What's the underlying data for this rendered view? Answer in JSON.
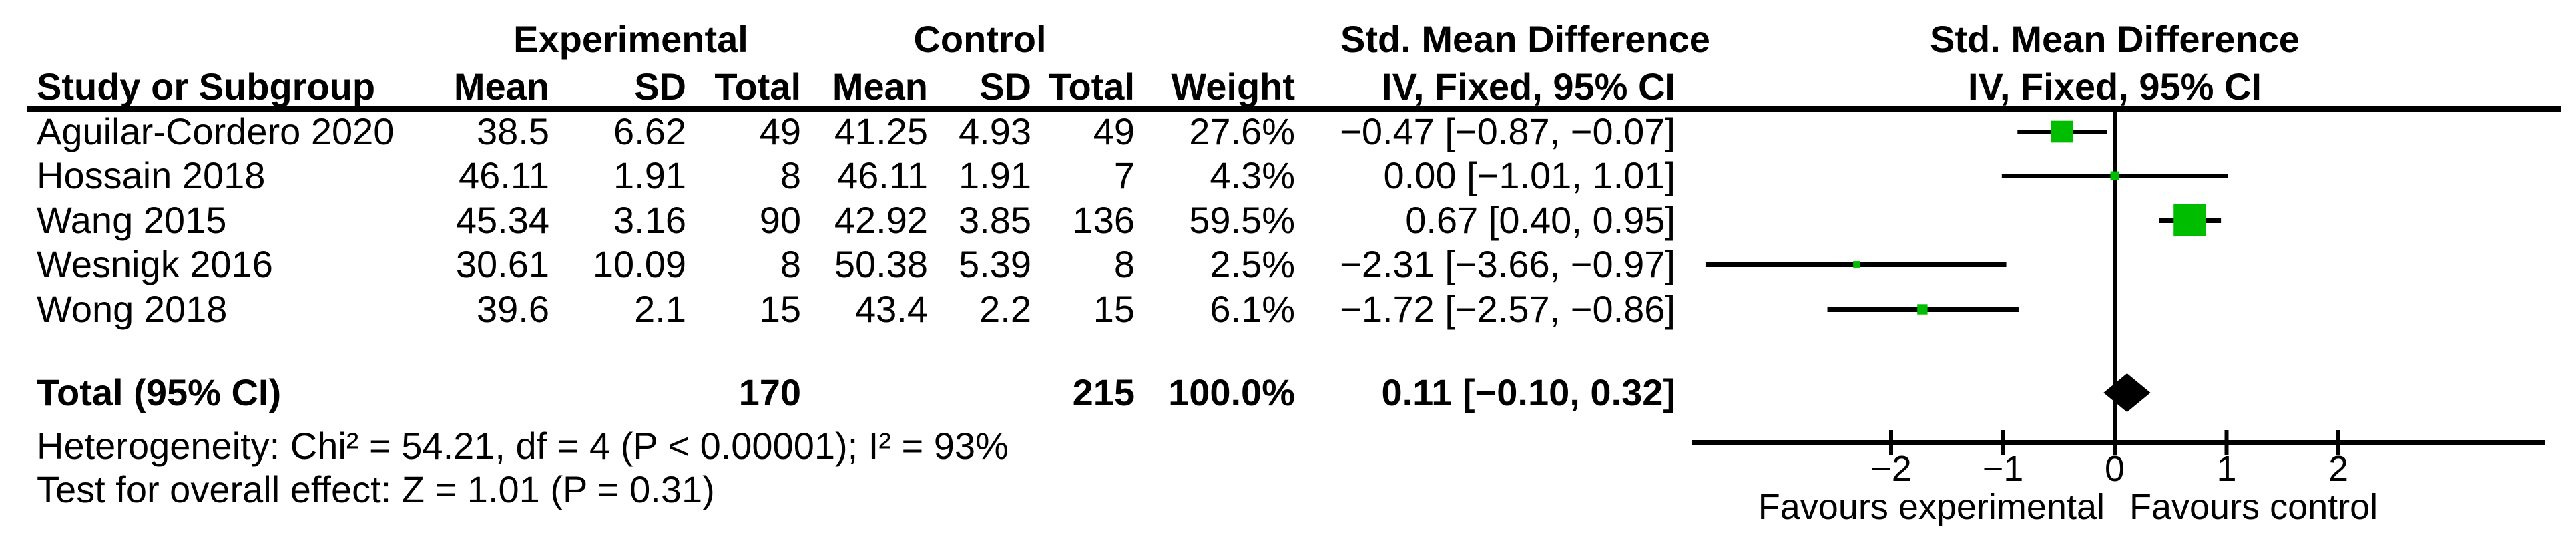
{
  "figure": {
    "kind": "forest-plot",
    "background": "#ffffff"
  },
  "colors": {
    "marker_green": "#00bd00",
    "line_black": "#000000",
    "text_black": "#000000"
  },
  "table": {
    "group_headers": {
      "experimental": "Experimental",
      "control": "Control",
      "smd_left": "Std. Mean Difference",
      "smd_right": "Std. Mean Difference"
    },
    "column_headers": {
      "study": "Study or Subgroup",
      "mean_exp": "Mean",
      "sd_exp": "SD",
      "total_exp": "Total",
      "mean_ctrl": "Mean",
      "sd_ctrl": "SD",
      "total_ctrl": "Total",
      "weight": "Weight",
      "ci": "IV, Fixed, 95% CI",
      "ci_plot": "IV, Fixed, 95% CI"
    },
    "rows": [
      {
        "study": "Aguilar-Cordero 2020",
        "mean_exp": "38.5",
        "sd_exp": "6.62",
        "total_exp": "49",
        "mean_ctrl": "41.25",
        "sd_ctrl": "4.93",
        "total_ctrl": "49",
        "weight": "27.6%",
        "ci_text": "−0.47 [−0.87, −0.07]"
      },
      {
        "study": "Hossain 2018",
        "mean_exp": "46.11",
        "sd_exp": "1.91",
        "total_exp": "8",
        "mean_ctrl": "46.11",
        "sd_ctrl": "1.91",
        "total_ctrl": "7",
        "weight": "4.3%",
        "ci_text": "0.00 [−1.01, 1.01]"
      },
      {
        "study": "Wang 2015",
        "mean_exp": "45.34",
        "sd_exp": "3.16",
        "total_exp": "90",
        "mean_ctrl": "42.92",
        "sd_ctrl": "3.85",
        "total_ctrl": "136",
        "weight": "59.5%",
        "ci_text": "0.67 [0.40, 0.95]"
      },
      {
        "study": "Wesnigk 2016",
        "mean_exp": "30.61",
        "sd_exp": "10.09",
        "total_exp": "8",
        "mean_ctrl": "50.38",
        "sd_ctrl": "5.39",
        "total_ctrl": "8",
        "weight": "2.5%",
        "ci_text": "−2.31 [−3.66, −0.97]"
      },
      {
        "study": "Wong 2018",
        "mean_exp": "39.6",
        "sd_exp": "2.1",
        "total_exp": "15",
        "mean_ctrl": "43.4",
        "sd_ctrl": "2.2",
        "total_ctrl": "15",
        "weight": "6.1%",
        "ci_text": "−1.72 [−2.57, −0.86]"
      }
    ],
    "total_row": {
      "label": "Total (95% CI)",
      "total_exp": "170",
      "total_ctrl": "215",
      "weight": "100.0%",
      "ci_text": "0.11 [−0.10, 0.32]"
    },
    "heterogeneity": "Heterogeneity: Chi² = 54.21, df = 4 (P < 0.00001); I² = 93%",
    "overall_effect": "Test for overall effect: Z = 1.01 (P = 0.31)"
  },
  "chart_data": {
    "type": "forest",
    "effect_measure": "Std. Mean Difference",
    "model": "IV, Fixed, 95% CI",
    "studies": [
      {
        "name": "Aguilar-Cordero 2020",
        "smd": -0.47,
        "ci_low": -0.87,
        "ci_high": -0.07,
        "weight_pct": 27.6
      },
      {
        "name": "Hossain 2018",
        "smd": 0.0,
        "ci_low": -1.01,
        "ci_high": 1.01,
        "weight_pct": 4.3
      },
      {
        "name": "Wang 2015",
        "smd": 0.67,
        "ci_low": 0.4,
        "ci_high": 0.95,
        "weight_pct": 59.5
      },
      {
        "name": "Wesnigk 2016",
        "smd": -2.31,
        "ci_low": -3.66,
        "ci_high": -0.97,
        "weight_pct": 2.5
      },
      {
        "name": "Wong 2018",
        "smd": -1.72,
        "ci_low": -2.57,
        "ci_high": -0.86,
        "weight_pct": 6.1
      }
    ],
    "total": {
      "label": "Total (95% CI)",
      "smd": 0.11,
      "ci_low": -0.1,
      "ci_high": 0.32,
      "total_exp": 170,
      "total_ctrl": 215,
      "weight_pct": 100.0
    },
    "heterogeneity": {
      "chi2": 54.21,
      "df": 4,
      "p": "< 0.00001",
      "i2_pct": 93
    },
    "overall_effect_test": {
      "z": 1.01,
      "p": "= 0.31"
    },
    "axis": {
      "ticks": [
        -2,
        -1,
        0,
        1,
        2
      ],
      "tick_labels": [
        "−2",
        "−1",
        "0",
        "1",
        "2"
      ],
      "zero_line": 0,
      "grid": false
    },
    "favours_left": "Favours experimental",
    "favours_right": "Favours control"
  }
}
